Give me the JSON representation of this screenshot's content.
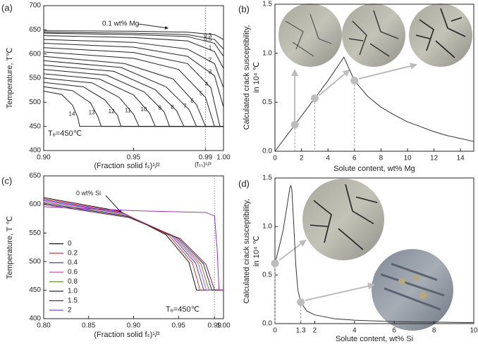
{
  "chart_data": [
    {
      "type": "line",
      "panel": "(a)",
      "xlabel": "(Fraction solid fₛ)¹/²",
      "ylabel": "Temperature, T℃",
      "xlim": [
        0.9,
        1.0
      ],
      "ylim": [
        400,
        700
      ],
      "xticks": [
        {
          "value": 0.9,
          "label": "0.90"
        },
        0.95,
        0.99,
        {
          "value": 1.0,
          "label": "1.00"
        }
      ],
      "yticks": [
        400,
        450,
        500,
        550,
        600,
        650,
        700
      ],
      "reference_x": 0.99,
      "reference_label": "(fₛₛ)¹/²",
      "te_label": "Tₑ=450℃",
      "curve_labels": true,
      "series": [
        {
          "name": "0.1 wt% Mg",
          "color": "#222",
          "x": [
            0.9,
            0.95,
            0.98,
            0.995,
            1.0,
            1.0
          ],
          "values": [
            648,
            647,
            645,
            640,
            630,
            450
          ]
        },
        {
          "name": "0.3",
          "color": "#222",
          "x": [
            0.9,
            0.95,
            0.98,
            0.995,
            1.0,
            1.0
          ],
          "values": [
            645,
            643,
            640,
            630,
            610,
            450
          ]
        },
        {
          "name": "0.5",
          "color": "#222",
          "x": [
            0.9,
            0.95,
            0.98,
            0.995,
            1.0,
            1.0
          ],
          "values": [
            643,
            640,
            636,
            622,
            595,
            450
          ]
        },
        {
          "name": "1",
          "color": "#222",
          "x": [
            0.9,
            0.95,
            0.98,
            0.995,
            1.0,
            1.0
          ],
          "values": [
            638,
            634,
            627,
            605,
            570,
            450
          ]
        },
        {
          "name": "2",
          "color": "#222",
          "x": [
            0.9,
            0.95,
            0.98,
            0.995,
            1.0,
            1.0
          ],
          "values": [
            630,
            624,
            610,
            580,
            530,
            450
          ]
        },
        {
          "name": "3",
          "color": "#222",
          "x": [
            0.9,
            0.95,
            0.98,
            0.995,
            1.0,
            1.0
          ],
          "values": [
            622,
            614,
            595,
            555,
            490,
            450
          ]
        },
        {
          "name": "4",
          "color": "#222",
          "x": [
            0.9,
            0.95,
            0.98,
            0.993,
            0.998,
            1.0
          ],
          "values": [
            613,
            603,
            580,
            530,
            450,
            450
          ]
        },
        {
          "name": "5",
          "color": "#222",
          "x": [
            0.9,
            0.95,
            0.975,
            0.99,
            0.995,
            1.0
          ],
          "values": [
            604,
            591,
            568,
            510,
            450,
            450
          ]
        },
        {
          "name": "6",
          "color": "#222",
          "x": [
            0.9,
            0.945,
            0.972,
            0.985,
            0.99,
            1.0
          ],
          "values": [
            595,
            580,
            548,
            495,
            450,
            450
          ]
        },
        {
          "name": "7",
          "color": "#222",
          "x": [
            0.9,
            0.943,
            0.968,
            0.981,
            0.985,
            1.0
          ],
          "values": [
            586,
            572,
            532,
            484,
            450,
            450
          ]
        },
        {
          "name": "8",
          "color": "#222",
          "x": [
            0.9,
            0.939,
            0.962,
            0.974,
            0.978,
            1.0
          ],
          "values": [
            577,
            564,
            526,
            482,
            450,
            450
          ]
        },
        {
          "name": "9",
          "color": "#222",
          "x": [
            0.9,
            0.935,
            0.956,
            0.967,
            0.97,
            1.0
          ],
          "values": [
            568,
            556,
            521,
            480,
            450,
            450
          ]
        },
        {
          "name": "10",
          "color": "#222",
          "x": [
            0.9,
            0.931,
            0.95,
            0.959,
            0.962,
            1.0
          ],
          "values": [
            559,
            548,
            515,
            477,
            450,
            450
          ]
        },
        {
          "name": "11",
          "color": "#222",
          "x": [
            0.9,
            0.927,
            0.942,
            0.95,
            0.953,
            1.0
          ],
          "values": [
            550,
            540,
            510,
            475,
            450,
            450
          ]
        },
        {
          "name": "12",
          "color": "#222",
          "x": [
            0.9,
            0.922,
            0.934,
            0.941,
            0.943,
            1.0
          ],
          "values": [
            541,
            532,
            505,
            473,
            450,
            450
          ]
        },
        {
          "name": "13",
          "color": "#222",
          "x": [
            0.9,
            0.916,
            0.926,
            0.93,
            0.932,
            1.0
          ],
          "values": [
            532,
            524,
            499,
            471,
            450,
            450
          ]
        },
        {
          "name": "14",
          "color": "#222",
          "x": [
            0.9,
            0.91,
            0.916,
            0.919,
            0.92,
            1.0
          ],
          "values": [
            523,
            516,
            494,
            468,
            450,
            450
          ]
        }
      ]
    },
    {
      "type": "line",
      "panel": "(b)",
      "xlabel": "Solute content, wt% Mg",
      "ylabel": [
        "Calculated crack susceptibility,",
        "in 10⁴ ℃"
      ],
      "xlim": [
        0,
        15
      ],
      "ylim": [
        0,
        1.5
      ],
      "xticks": [
        0,
        2,
        4,
        6,
        8,
        10,
        12,
        14
      ],
      "yticks": [
        {
          "value": 0,
          "label": "0.0"
        },
        0.5,
        {
          "value": 1,
          "label": "1.0"
        },
        1.5
      ],
      "series": [
        {
          "color": "#333",
          "x": [
            0,
            1,
            2,
            3,
            4,
            5,
            5.2,
            6,
            7,
            8,
            9,
            10,
            11,
            12,
            13,
            14,
            15
          ],
          "values": [
            0,
            0.18,
            0.36,
            0.54,
            0.72,
            0.92,
            0.96,
            0.72,
            0.56,
            0.45,
            0.37,
            0.3,
            0.25,
            0.2,
            0.16,
            0.13,
            0.1
          ]
        }
      ],
      "markers": {
        "color": "#bdbdbd",
        "x": [
          1.5,
          3,
          6
        ],
        "values": [
          0.27,
          0.54,
          0.72
        ]
      }
    },
    {
      "type": "line",
      "panel": "(c)",
      "xlabel": "(Fraction solid fₛ)¹/²",
      "ylabel": "Temperature, T ℃",
      "xlim": [
        0.8,
        1.0
      ],
      "ylim": [
        400,
        650
      ],
      "xticks": [
        {
          "value": 0.8,
          "label": "0.80"
        },
        0.85,
        {
          "value": 0.9,
          "label": "0.90"
        },
        0.95,
        0.99,
        {
          "value": 1.0,
          "label": "1.00"
        }
      ],
      "yticks": [
        400,
        450,
        500,
        550,
        600,
        650
      ],
      "reference_x": 0.99,
      "note": "0 wt% Si",
      "te_label": "Tₑ=450℃",
      "legend": "lower left",
      "series": [
        {
          "name": "0",
          "color": "#111111",
          "x": [
            0.8,
            0.885,
            0.936,
            0.9615,
            0.97,
            1.0
          ],
          "values": [
            612,
            588,
            547,
            499,
            450,
            450
          ]
        },
        {
          "name": "0.2",
          "color": "#e8322f",
          "x": [
            0.8,
            0.887,
            0.9392,
            0.9653,
            0.974,
            1.0
          ],
          "values": [
            610,
            586,
            546,
            498,
            450,
            450
          ]
        },
        {
          "name": "0.4",
          "color": "#2a3fd6",
          "x": [
            0.8,
            0.889,
            0.9424,
            0.9691,
            0.978,
            1.0
          ],
          "values": [
            608,
            584,
            545,
            497,
            450,
            450
          ]
        },
        {
          "name": "0.6",
          "color": "#e040e0",
          "x": [
            0.8,
            0.8905,
            0.9448,
            0.972,
            0.981,
            1.0
          ],
          "values": [
            606,
            583,
            544,
            497,
            450,
            450
          ]
        },
        {
          "name": "0.8",
          "color": "#6b8e23",
          "x": [
            0.8,
            0.892,
            0.9472,
            0.9748,
            0.984,
            1.0
          ],
          "values": [
            604,
            581,
            542,
            496,
            450,
            450
          ]
        },
        {
          "name": "1.0",
          "color": "#1a237e",
          "x": [
            0.8,
            0.8935,
            0.9496,
            0.9777,
            0.987,
            1.0
          ],
          "values": [
            602,
            579,
            541,
            496,
            450,
            450
          ]
        },
        {
          "name": "1.5",
          "color": "#8b1a1a",
          "x": [
            0.8,
            0.895,
            0.952,
            0.9805,
            0.99,
            1.0
          ],
          "values": [
            600,
            577,
            540,
            495,
            450,
            450
          ]
        },
        {
          "name": "2",
          "color": "#9b30d0",
          "x": [
            0.8,
            0.9,
            0.98,
            0.99,
            0.993,
            0.995,
            1.0
          ],
          "values": [
            596,
            589,
            586,
            580,
            520,
            450,
            450
          ]
        }
      ]
    },
    {
      "type": "line",
      "panel": "(d)",
      "xlabel": "Solute content, wt% Si",
      "ylabel": [
        "Calculated crack susceptibility,",
        "in 10⁴ ℃"
      ],
      "xlim": [
        0,
        10
      ],
      "ylim": [
        0,
        1.5
      ],
      "xticks": [
        0,
        1.3,
        2,
        4,
        6,
        8,
        10
      ],
      "yticks": [
        {
          "value": 0,
          "label": "0.0"
        },
        0.5,
        {
          "value": 1,
          "label": "1.0"
        },
        1.5
      ],
      "series": [
        {
          "color": "#333",
          "x": [
            0,
            0.2,
            0.4,
            0.6,
            0.75,
            0.8,
            0.85,
            0.95,
            1.05,
            1.15,
            1.3,
            1.6,
            2,
            3,
            4,
            6,
            8,
            10
          ],
          "values": [
            0.62,
            0.78,
            0.95,
            1.2,
            1.4,
            1.42,
            1.38,
            1.0,
            0.6,
            0.35,
            0.22,
            0.13,
            0.09,
            0.05,
            0.035,
            0.02,
            0.015,
            0.01
          ]
        }
      ],
      "markers": {
        "color": "#bdbdbd",
        "x": [
          0,
          1.3
        ],
        "values": [
          0.62,
          0.22
        ]
      }
    }
  ]
}
